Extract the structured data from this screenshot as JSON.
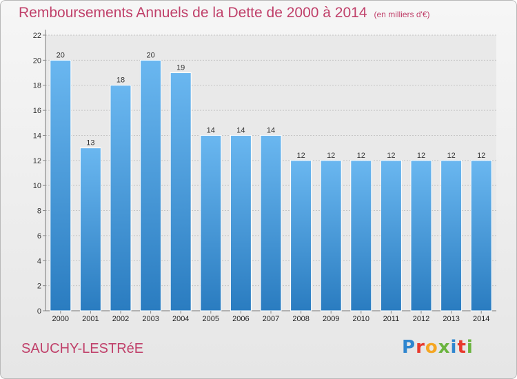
{
  "chart_data": {
    "type": "bar",
    "title": "Remboursements Annuels de la Dette de 2000 à 2014",
    "unit_note": "(en milliers d'€)",
    "categories": [
      "2000",
      "2001",
      "2002",
      "2003",
      "2004",
      "2005",
      "2006",
      "2007",
      "2008",
      "2009",
      "2010",
      "2011",
      "2012",
      "2013",
      "2014"
    ],
    "values": [
      20,
      13,
      18,
      20,
      19,
      14,
      14,
      14,
      12,
      12,
      12,
      12,
      12,
      12,
      12
    ],
    "ylim": [
      0,
      22
    ],
    "yticks": [
      0,
      2,
      4,
      6,
      8,
      10,
      12,
      14,
      16,
      18,
      20,
      22
    ],
    "xlabel": "",
    "ylabel": "",
    "grid": true,
    "bar_color_top": "#6ab7f0",
    "bar_color_bottom": "#2a7cc0"
  },
  "footer": {
    "city": "SAUCHY-LESTRéE",
    "brand": "Proxiti",
    "brand_colors": [
      "#2f86cf",
      "#e8392d",
      "#f5a623",
      "#6ab43e",
      "#2f86cf",
      "#e8392d",
      "#6ab43e"
    ]
  }
}
